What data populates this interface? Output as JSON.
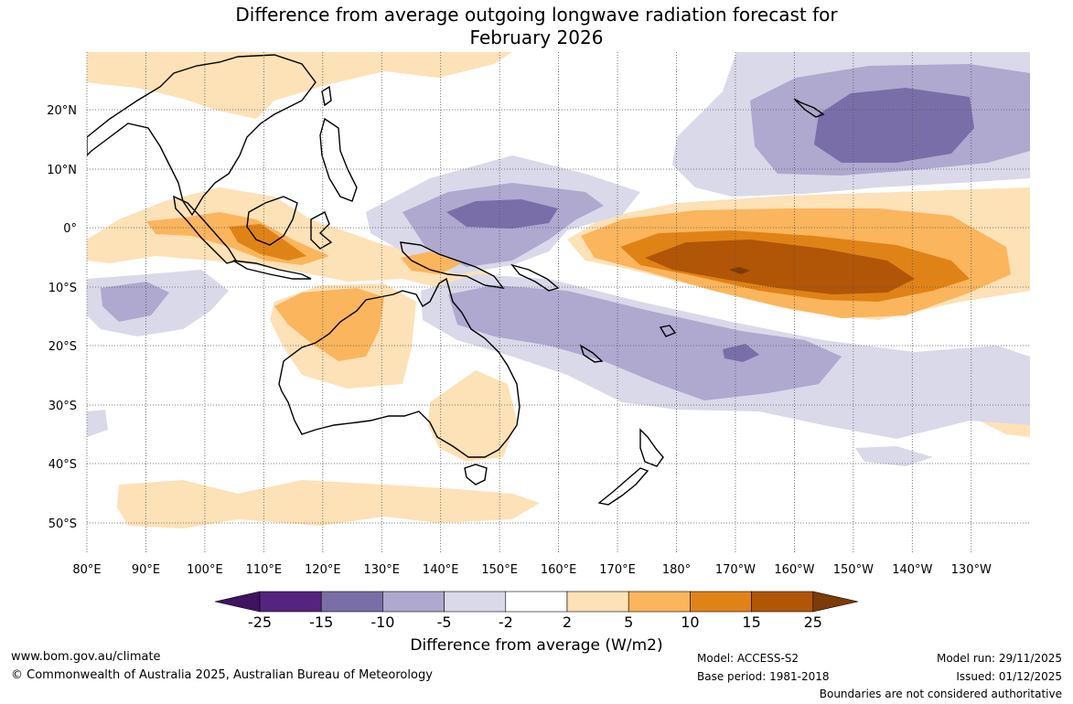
{
  "title_line1": "Difference from average outgoing longwave radiation forecast for",
  "title_line2": "February 2026",
  "axes": {
    "lon_labels": [
      "80°E",
      "90°E",
      "100°E",
      "110°E",
      "120°E",
      "130°E",
      "140°E",
      "150°E",
      "160°E",
      "170°E",
      "180°",
      "170°W",
      "160°W",
      "150°W",
      "140°W",
      "130°W"
    ],
    "lat_labels": [
      "20°N",
      "10°N",
      "0°",
      "10°S",
      "20°S",
      "30°S",
      "40°S",
      "50°S"
    ]
  },
  "colorbar": {
    "labels": [
      "-25",
      "-15",
      "-10",
      "-5",
      "-2",
      "2",
      "5",
      "10",
      "15",
      "25"
    ],
    "colors": [
      "#3e1361",
      "#55247f",
      "#7a6ea9",
      "#afa8cf",
      "#d9d9ea",
      "#ffffff",
      "#fde1b7",
      "#fbb55d",
      "#e08317",
      "#b15506",
      "#7d3b05"
    ],
    "title": "Difference from average (W/m2)"
  },
  "footer": {
    "website": "www.bom.gov.au/climate",
    "copyright": "© Commonwealth of Australia 2025, Australian Bureau of Meteorology",
    "model": "Model: ACCESS-S2",
    "base_period": "Base period: 1981-2018",
    "model_run": "Model run: 29/11/2025",
    "issued": "Issued: 01/12/2025",
    "disclaimer": "Boundaries are not considered authoritative"
  }
}
